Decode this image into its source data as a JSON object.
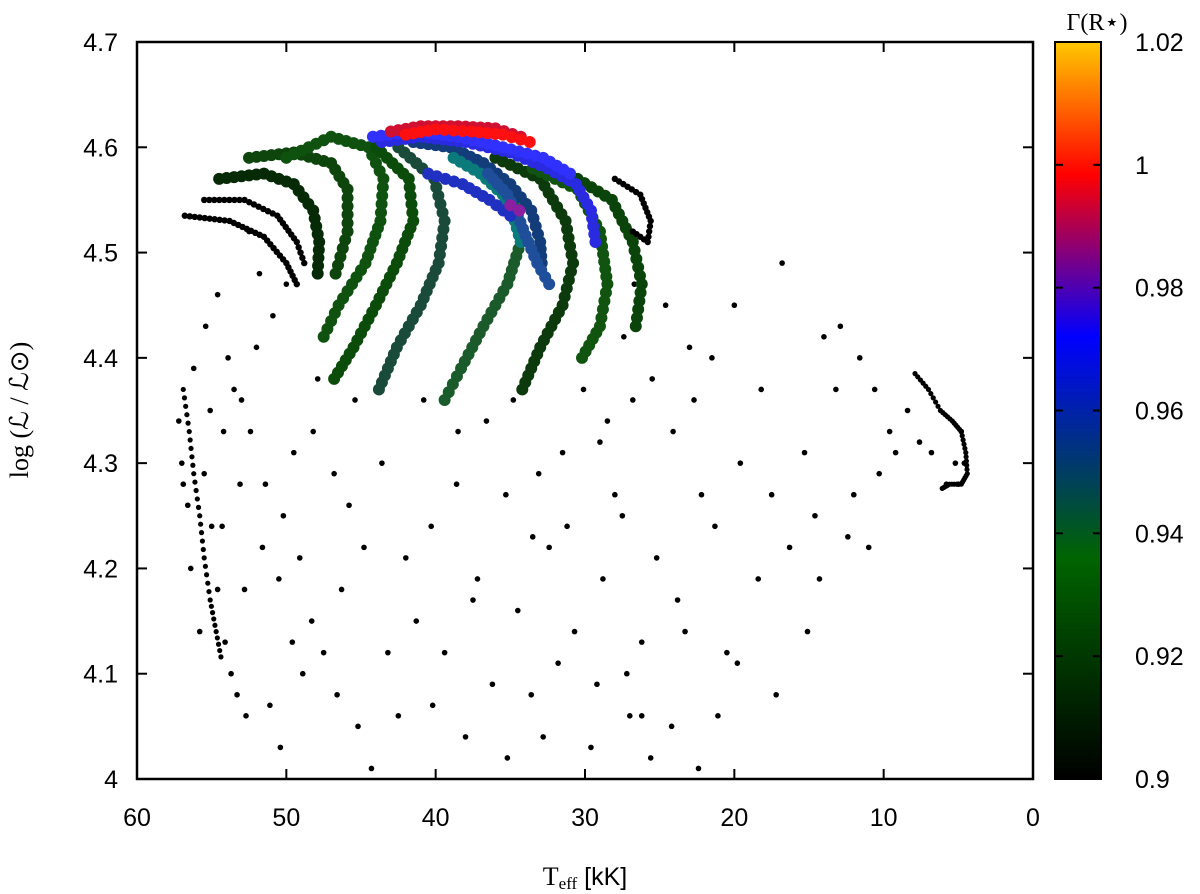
{
  "chart_data": {
    "type": "scatter",
    "title": "",
    "xlabel_main": "T",
    "xlabel_sub": "eff",
    "xlabel_unit": " [kK]",
    "ylabel": "log (ℒ / ℒ⊙)",
    "xlim": [
      60,
      0
    ],
    "ylim": [
      4.0,
      4.7
    ],
    "x_ticks": [
      "60",
      "50",
      "40",
      "30",
      "20",
      "10",
      "0"
    ],
    "y_ticks": [
      "4",
      "4.1",
      "4.2",
      "4.3",
      "4.4",
      "4.5",
      "4.6",
      "4.7"
    ],
    "colorbar": {
      "title": "Γ(R⋆)",
      "range": [
        0.9,
        1.02
      ],
      "ticks": [
        "0.9",
        "0.92",
        "0.94",
        "0.96",
        "0.98",
        "1",
        "1.02"
      ],
      "colors": [
        "#000000",
        "#006400",
        "#0000ff",
        "#ff0000",
        "#ffc800"
      ]
    },
    "background_points": [
      [
        57.2,
        4.34
      ],
      [
        57.0,
        4.3
      ],
      [
        56.6,
        4.26
      ],
      [
        56.4,
        4.2
      ],
      [
        55.8,
        4.14
      ],
      [
        55.5,
        4.29
      ],
      [
        55.0,
        4.24
      ],
      [
        54.6,
        4.18
      ],
      [
        54.1,
        4.13
      ],
      [
        53.7,
        4.1
      ],
      [
        53.3,
        4.08
      ],
      [
        52.7,
        4.06
      ],
      [
        56.2,
        4.39
      ],
      [
        55.4,
        4.43
      ],
      [
        54.6,
        4.46
      ],
      [
        53.9,
        4.4
      ],
      [
        53.0,
        4.36
      ],
      [
        52.4,
        4.33
      ],
      [
        51.4,
        4.28
      ],
      [
        50.2,
        4.25
      ],
      [
        49.1,
        4.21
      ],
      [
        48.3,
        4.15
      ],
      [
        47.5,
        4.12
      ],
      [
        46.6,
        4.08
      ],
      [
        45.2,
        4.05
      ],
      [
        44.3,
        4.01
      ],
      [
        42.5,
        4.06
      ],
      [
        41.3,
        4.15
      ],
      [
        40.3,
        4.24
      ],
      [
        39.4,
        4.12
      ],
      [
        38.6,
        4.28
      ],
      [
        38.0,
        4.04
      ],
      [
        37.2,
        4.19
      ],
      [
        36.2,
        4.09
      ],
      [
        35.3,
        4.27
      ],
      [
        34.5,
        4.16
      ],
      [
        33.6,
        4.08
      ],
      [
        32.4,
        4.22
      ],
      [
        31.5,
        4.31
      ],
      [
        30.7,
        4.14
      ],
      [
        29.6,
        4.03
      ],
      [
        28.8,
        4.19
      ],
      [
        28.0,
        4.27
      ],
      [
        27.2,
        4.1
      ],
      [
        26.2,
        4.06
      ],
      [
        25.2,
        4.21
      ],
      [
        24.2,
        4.05
      ],
      [
        23.3,
        4.14
      ],
      [
        22.4,
        4.01
      ],
      [
        21.3,
        4.24
      ],
      [
        20.5,
        4.12
      ],
      [
        19.6,
        4.3
      ],
      [
        18.4,
        4.19
      ],
      [
        17.5,
        4.27
      ],
      [
        16.3,
        4.22
      ],
      [
        15.3,
        4.31
      ],
      [
        14.6,
        4.25
      ],
      [
        13.2,
        4.37
      ],
      [
        12.0,
        4.27
      ],
      [
        11.0,
        4.22
      ],
      [
        10.3,
        4.29
      ],
      [
        9.6,
        4.33
      ],
      [
        48.2,
        4.33
      ],
      [
        46.8,
        4.29
      ],
      [
        45.4,
        4.36
      ],
      [
        43.6,
        4.3
      ],
      [
        44.8,
        4.22
      ],
      [
        46.3,
        4.18
      ],
      [
        43.2,
        4.12
      ],
      [
        40.2,
        4.07
      ],
      [
        36.6,
        4.34
      ],
      [
        34.8,
        4.36
      ],
      [
        33.1,
        4.29
      ],
      [
        30.1,
        4.37
      ],
      [
        28.5,
        4.34
      ],
      [
        26.8,
        4.36
      ],
      [
        24.1,
        4.33
      ],
      [
        22.2,
        4.27
      ],
      [
        23.8,
        4.17
      ],
      [
        26.2,
        4.13
      ],
      [
        29.2,
        4.09
      ],
      [
        32.8,
        4.04
      ],
      [
        35.2,
        4.02
      ],
      [
        31.2,
        4.24
      ],
      [
        27.5,
        4.25
      ],
      [
        20.0,
        4.45
      ],
      [
        16.8,
        4.49
      ],
      [
        14.0,
        4.42
      ],
      [
        18.2,
        4.37
      ],
      [
        21.5,
        4.4
      ],
      [
        52.5,
        4.52
      ],
      [
        51.8,
        4.48
      ],
      [
        50.9,
        4.44
      ],
      [
        50.0,
        4.47
      ],
      [
        52.0,
        4.41
      ],
      [
        53.5,
        4.37
      ],
      [
        54.2,
        4.33
      ],
      [
        53.1,
        4.28
      ],
      [
        51.6,
        4.22
      ],
      [
        52.8,
        4.18
      ],
      [
        50.5,
        4.19
      ],
      [
        49.6,
        4.13
      ],
      [
        48.9,
        4.1
      ],
      [
        50.4,
        4.03
      ],
      [
        51.1,
        4.07
      ],
      [
        55.1,
        4.35
      ],
      [
        56.9,
        4.28
      ],
      [
        54.3,
        4.24
      ],
      [
        12.4,
        4.23
      ],
      [
        14.3,
        4.19
      ],
      [
        15.1,
        4.14
      ],
      [
        17.2,
        4.08
      ],
      [
        19.8,
        4.11
      ],
      [
        21.1,
        4.06
      ],
      [
        25.6,
        4.02
      ],
      [
        27.0,
        4.06
      ],
      [
        31.8,
        4.11
      ],
      [
        37.5,
        4.17
      ],
      [
        42.0,
        4.21
      ],
      [
        45.8,
        4.26
      ],
      [
        47.9,
        4.38
      ],
      [
        49.5,
        4.31
      ],
      [
        38.5,
        4.33
      ],
      [
        40.8,
        4.36
      ],
      [
        33.5,
        4.23
      ],
      [
        29.0,
        4.32
      ],
      [
        25.5,
        4.38
      ],
      [
        23.0,
        4.41
      ],
      [
        26.7,
        4.47
      ],
      [
        27.4,
        4.42
      ],
      [
        24.6,
        4.45
      ],
      [
        22.7,
        4.36
      ],
      [
        9.2,
        4.31
      ],
      [
        8.4,
        4.35
      ],
      [
        7.6,
        4.32
      ],
      [
        6.8,
        4.31
      ],
      [
        5.8,
        4.28
      ],
      [
        5.2,
        4.3
      ],
      [
        11.6,
        4.4
      ],
      [
        10.6,
        4.37
      ],
      [
        12.9,
        4.43
      ],
      [
        4.6,
        4.3
      ],
      [
        5.0,
        4.28
      ],
      [
        4.8,
        4.33
      ]
    ],
    "main_tracks": [
      {
        "name": "track-a",
        "color": "#000000",
        "pts": [
          [
            56.8,
            4.535
          ],
          [
            53.8,
            4.53
          ],
          [
            51.5,
            4.515
          ],
          [
            50.0,
            4.49
          ],
          [
            49.3,
            4.47
          ]
        ]
      },
      {
        "name": "track-b",
        "color": "#000000",
        "pts": [
          [
            55.5,
            4.55
          ],
          [
            52.8,
            4.55
          ],
          [
            50.6,
            4.535
          ],
          [
            49.3,
            4.51
          ],
          [
            48.8,
            4.49
          ]
        ]
      },
      {
        "name": "track-c",
        "color": "#062a06",
        "pts": [
          [
            54.5,
            4.57
          ],
          [
            51.5,
            4.575
          ],
          [
            49.5,
            4.565
          ],
          [
            48.2,
            4.54
          ],
          [
            47.8,
            4.51
          ],
          [
            47.9,
            4.48
          ]
        ]
      },
      {
        "name": "track-d",
        "color": "#0d450d",
        "pts": [
          [
            52.5,
            4.59
          ],
          [
            49.5,
            4.595
          ],
          [
            47.0,
            4.585
          ],
          [
            45.9,
            4.56
          ],
          [
            45.9,
            4.52
          ],
          [
            46.7,
            4.48
          ]
        ]
      },
      {
        "name": "track-e",
        "color": "#0f520f",
        "pts": [
          [
            50.0,
            4.59
          ],
          [
            47.0,
            4.61
          ],
          [
            44.5,
            4.6
          ],
          [
            43.5,
            4.57
          ],
          [
            43.7,
            4.53
          ],
          [
            44.7,
            4.49
          ],
          [
            46.5,
            4.45
          ],
          [
            47.5,
            4.42
          ]
        ]
      },
      {
        "name": "track-f",
        "color": "#0b4c0b",
        "pts": [
          [
            44.0,
            4.6
          ],
          [
            41.8,
            4.57
          ],
          [
            41.5,
            4.53
          ],
          [
            42.6,
            4.49
          ],
          [
            44.0,
            4.45
          ],
          [
            45.5,
            4.41
          ],
          [
            46.8,
            4.38
          ]
        ]
      },
      {
        "name": "track-g",
        "color": "#1a4a3a",
        "pts": [
          [
            42.5,
            4.6
          ],
          [
            40.1,
            4.57
          ],
          [
            39.4,
            4.53
          ],
          [
            39.8,
            4.49
          ],
          [
            41.0,
            4.45
          ],
          [
            42.6,
            4.41
          ],
          [
            43.8,
            4.37
          ]
        ]
      },
      {
        "name": "track-h",
        "color": "#1b5a2a",
        "pts": [
          [
            39.0,
            4.6
          ],
          [
            36.5,
            4.58
          ],
          [
            34.7,
            4.55
          ],
          [
            34.3,
            4.51
          ],
          [
            35.2,
            4.47
          ],
          [
            36.8,
            4.43
          ],
          [
            38.3,
            4.39
          ],
          [
            39.4,
            4.36
          ]
        ]
      },
      {
        "name": "track-i",
        "color": "#0c3a0c",
        "pts": [
          [
            36.0,
            4.59
          ],
          [
            33.0,
            4.57
          ],
          [
            31.3,
            4.53
          ],
          [
            30.8,
            4.49
          ],
          [
            31.5,
            4.45
          ],
          [
            33.0,
            4.41
          ],
          [
            34.2,
            4.37
          ]
        ]
      },
      {
        "name": "track-j",
        "color": "#105410",
        "pts": [
          [
            33.5,
            4.58
          ],
          [
            30.5,
            4.56
          ],
          [
            29.0,
            4.52
          ],
          [
            28.5,
            4.47
          ],
          [
            29.0,
            4.43
          ],
          [
            30.2,
            4.4
          ]
        ]
      },
      {
        "name": "track-k",
        "color": "#0a440a",
        "pts": [
          [
            30.5,
            4.57
          ],
          [
            28.2,
            4.55
          ],
          [
            26.8,
            4.51
          ],
          [
            26.2,
            4.47
          ],
          [
            26.6,
            4.43
          ]
        ]
      },
      {
        "name": "track-l",
        "color": "#000000",
        "pts": [
          [
            28.0,
            4.57
          ],
          [
            26.3,
            4.555
          ],
          [
            25.6,
            4.53
          ],
          [
            25.8,
            4.51
          ],
          [
            26.8,
            4.52
          ]
        ]
      },
      {
        "name": "track-m",
        "color": "#123c7a",
        "pts": [
          [
            41.5,
            4.605
          ],
          [
            39.0,
            4.6
          ],
          [
            36.8,
            4.585
          ],
          [
            35.0,
            4.565
          ],
          [
            33.6,
            4.54
          ],
          [
            33.0,
            4.51
          ],
          [
            32.9,
            4.49
          ]
        ]
      },
      {
        "name": "track-n",
        "color": "#2a2ae0",
        "pts": [
          [
            43.6,
            4.605
          ],
          [
            41.0,
            4.61
          ],
          [
            38.0,
            4.605
          ],
          [
            35.0,
            4.595
          ],
          [
            32.5,
            4.58
          ],
          [
            30.6,
            4.565
          ],
          [
            29.6,
            4.54
          ],
          [
            29.3,
            4.51
          ]
        ]
      },
      {
        "name": "track-o",
        "color": "#3030ff",
        "pts": [
          [
            44.2,
            4.61
          ],
          [
            41.5,
            4.615
          ],
          [
            38.5,
            4.61
          ],
          [
            35.5,
            4.6
          ],
          [
            32.8,
            4.59
          ],
          [
            31.0,
            4.575
          ]
        ]
      },
      {
        "name": "track-p",
        "color": "#0a7a7a",
        "pts": [
          [
            38.8,
            4.59
          ],
          [
            37.0,
            4.575
          ],
          [
            35.5,
            4.555
          ],
          [
            34.7,
            4.53
          ],
          [
            34.3,
            4.51
          ]
        ]
      },
      {
        "name": "track-q",
        "color": "#1f4f9a",
        "pts": [
          [
            36.5,
            4.575
          ],
          [
            35.2,
            4.555
          ],
          [
            34.5,
            4.535
          ],
          [
            33.8,
            4.51
          ],
          [
            33.2,
            4.49
          ],
          [
            32.4,
            4.47
          ]
        ]
      },
      {
        "name": "track-r",
        "color": "#2030c0",
        "pts": [
          [
            40.5,
            4.575
          ],
          [
            38.2,
            4.565
          ],
          [
            36.4,
            4.55
          ],
          [
            35.0,
            4.535
          ]
        ]
      },
      {
        "name": "track-s",
        "color": "#8a1fa0",
        "pts": [
          [
            35.0,
            4.545
          ],
          [
            34.4,
            4.54
          ]
        ]
      },
      {
        "name": "track-t",
        "color": "#d01030",
        "pts": [
          [
            43.0,
            4.615
          ],
          [
            41.0,
            4.62
          ],
          [
            38.5,
            4.62
          ],
          [
            36.0,
            4.618
          ],
          [
            34.3,
            4.61
          ]
        ]
      },
      {
        "name": "track-u",
        "color": "#ff1010",
        "pts": [
          [
            42.0,
            4.612
          ],
          [
            40.0,
            4.617
          ],
          [
            37.6,
            4.615
          ],
          [
            35.5,
            4.612
          ],
          [
            33.7,
            4.605
          ]
        ]
      }
    ],
    "dense_clusters": [
      {
        "name": "left-edge",
        "pts": [
          [
            56.9,
            4.37
          ],
          [
            56.5,
            4.33
          ],
          [
            56.2,
            4.29
          ],
          [
            55.8,
            4.25
          ],
          [
            55.5,
            4.21
          ],
          [
            55.1,
            4.17
          ],
          [
            54.7,
            4.14
          ],
          [
            54.3,
            4.11
          ]
        ]
      },
      {
        "name": "right-hook",
        "pts": [
          [
            7.9,
            4.385
          ],
          [
            7.0,
            4.37
          ],
          [
            6.2,
            4.35
          ],
          [
            5.4,
            4.34
          ],
          [
            4.8,
            4.33
          ],
          [
            4.5,
            4.31
          ],
          [
            4.4,
            4.29
          ],
          [
            4.8,
            4.28
          ],
          [
            5.6,
            4.28
          ],
          [
            6.2,
            4.275
          ]
        ]
      }
    ]
  }
}
